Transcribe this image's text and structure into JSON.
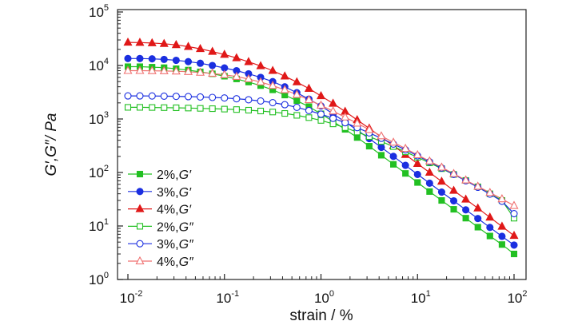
{
  "chart_data": {
    "type": "line",
    "xlabel": "strain / %",
    "ylabel": "G′,G″/ Pa",
    "x_scale": "log",
    "y_scale": "log",
    "xlim": [
      0.01,
      100
    ],
    "ylim": [
      1,
      100000
    ],
    "x_ticks": [
      0.01,
      0.1,
      1,
      10,
      100
    ],
    "x_tick_labels": [
      {
        "base": "10",
        "exp": "-2"
      },
      {
        "base": "10",
        "exp": "-1"
      },
      {
        "base": "10",
        "exp": "0"
      },
      {
        "base": "10",
        "exp": "1"
      },
      {
        "base": "10",
        "exp": "2"
      }
    ],
    "y_ticks": [
      1,
      10,
      100,
      1000,
      10000,
      100000
    ],
    "y_tick_labels": [
      {
        "base": "10",
        "exp": "0"
      },
      {
        "base": "10",
        "exp": "1"
      },
      {
        "base": "10",
        "exp": "2"
      },
      {
        "base": "10",
        "exp": "3"
      },
      {
        "base": "10",
        "exp": "4"
      },
      {
        "base": "10",
        "exp": "5"
      }
    ],
    "grid": false,
    "legend_position": "lower-left",
    "x": [
      0.01,
      0.0133,
      0.0178,
      0.0237,
      0.0316,
      0.0422,
      0.0562,
      0.075,
      0.1,
      0.1334,
      0.1778,
      0.2371,
      0.3162,
      0.4217,
      0.5623,
      0.7499,
      1.0,
      1.3335,
      1.7783,
      2.3714,
      3.1623,
      4.217,
      5.6234,
      7.4989,
      10.0,
      13.335,
      17.783,
      23.714,
      31.623,
      42.17,
      56.234,
      74.989,
      100.0
    ],
    "series": [
      {
        "name": "2%,G′",
        "label_pre": "2%,",
        "label_it": "G′",
        "color": "#22c022",
        "marker": "square",
        "filled": true,
        "values": [
          9500,
          9500,
          9300,
          9100,
          8700,
          8200,
          7600,
          7000,
          6300,
          5600,
          4900,
          4200,
          3500,
          2800,
          2200,
          1700,
          1250,
          900,
          640,
          450,
          310,
          210,
          142,
          96,
          65,
          44,
          30,
          20.5,
          14,
          9.5,
          6.5,
          4.5,
          3.0
        ]
      },
      {
        "name": "3%,G′",
        "label_pre": "3%,",
        "label_it": "G′",
        "color": "#1b2fe0",
        "marker": "circle",
        "filled": true,
        "values": [
          13500,
          13500,
          13300,
          13000,
          12500,
          11800,
          11000,
          10000,
          9000,
          8000,
          7000,
          6000,
          5000,
          4000,
          3100,
          2350,
          1750,
          1250,
          880,
          620,
          430,
          295,
          200,
          136,
          92,
          63,
          43,
          29.5,
          20,
          13.8,
          9.4,
          6.4,
          4.4
        ]
      },
      {
        "name": "4%,G′",
        "label_pre": "4%,",
        "label_it": "G′",
        "color": "#e01818",
        "marker": "triangle",
        "filled": true,
        "values": [
          27000,
          26800,
          26300,
          25500,
          24300,
          22500,
          20500,
          18200,
          16000,
          13800,
          11700,
          9800,
          8000,
          6300,
          4900,
          3700,
          2700,
          1950,
          1380,
          960,
          670,
          460,
          315,
          215,
          146,
          100,
          68,
          46,
          31.5,
          21.5,
          14.5,
          9.8,
          6.6
        ]
      },
      {
        "name": "2%,G″",
        "label_pre": "2%,",
        "label_it": "G″",
        "color": "#22c022",
        "marker": "square",
        "filled": false,
        "values": [
          1650,
          1650,
          1640,
          1630,
          1620,
          1600,
          1580,
          1560,
          1530,
          1500,
          1460,
          1410,
          1350,
          1270,
          1170,
          1060,
          940,
          810,
          690,
          570,
          470,
          380,
          305,
          243,
          192,
          151,
          118,
          92,
          71,
          54,
          40,
          30,
          14
        ]
      },
      {
        "name": "3%,G″",
        "label_pre": "3%,",
        "label_it": "G″",
        "color": "#1b2fe0",
        "marker": "circle",
        "filled": false,
        "values": [
          2700,
          2700,
          2690,
          2670,
          2650,
          2620,
          2580,
          2530,
          2470,
          2390,
          2290,
          2170,
          2020,
          1850,
          1650,
          1440,
          1230,
          1030,
          850,
          690,
          550,
          435,
          340,
          265,
          205,
          158,
          121,
          92,
          70,
          53,
          39.5,
          29,
          17
        ]
      },
      {
        "name": "4%,G″",
        "label_pre": "4%,",
        "label_it": "G″",
        "color": "#f07070",
        "marker": "triangle",
        "filled": false,
        "values": [
          8000,
          8000,
          7950,
          7900,
          7800,
          7650,
          7400,
          7100,
          6700,
          6200,
          5600,
          4900,
          4200,
          3500,
          2850,
          2280,
          1800,
          1400,
          1080,
          830,
          630,
          480,
          365,
          280,
          213,
          163,
          125,
          95,
          72,
          55,
          42,
          32,
          24
        ]
      }
    ]
  }
}
